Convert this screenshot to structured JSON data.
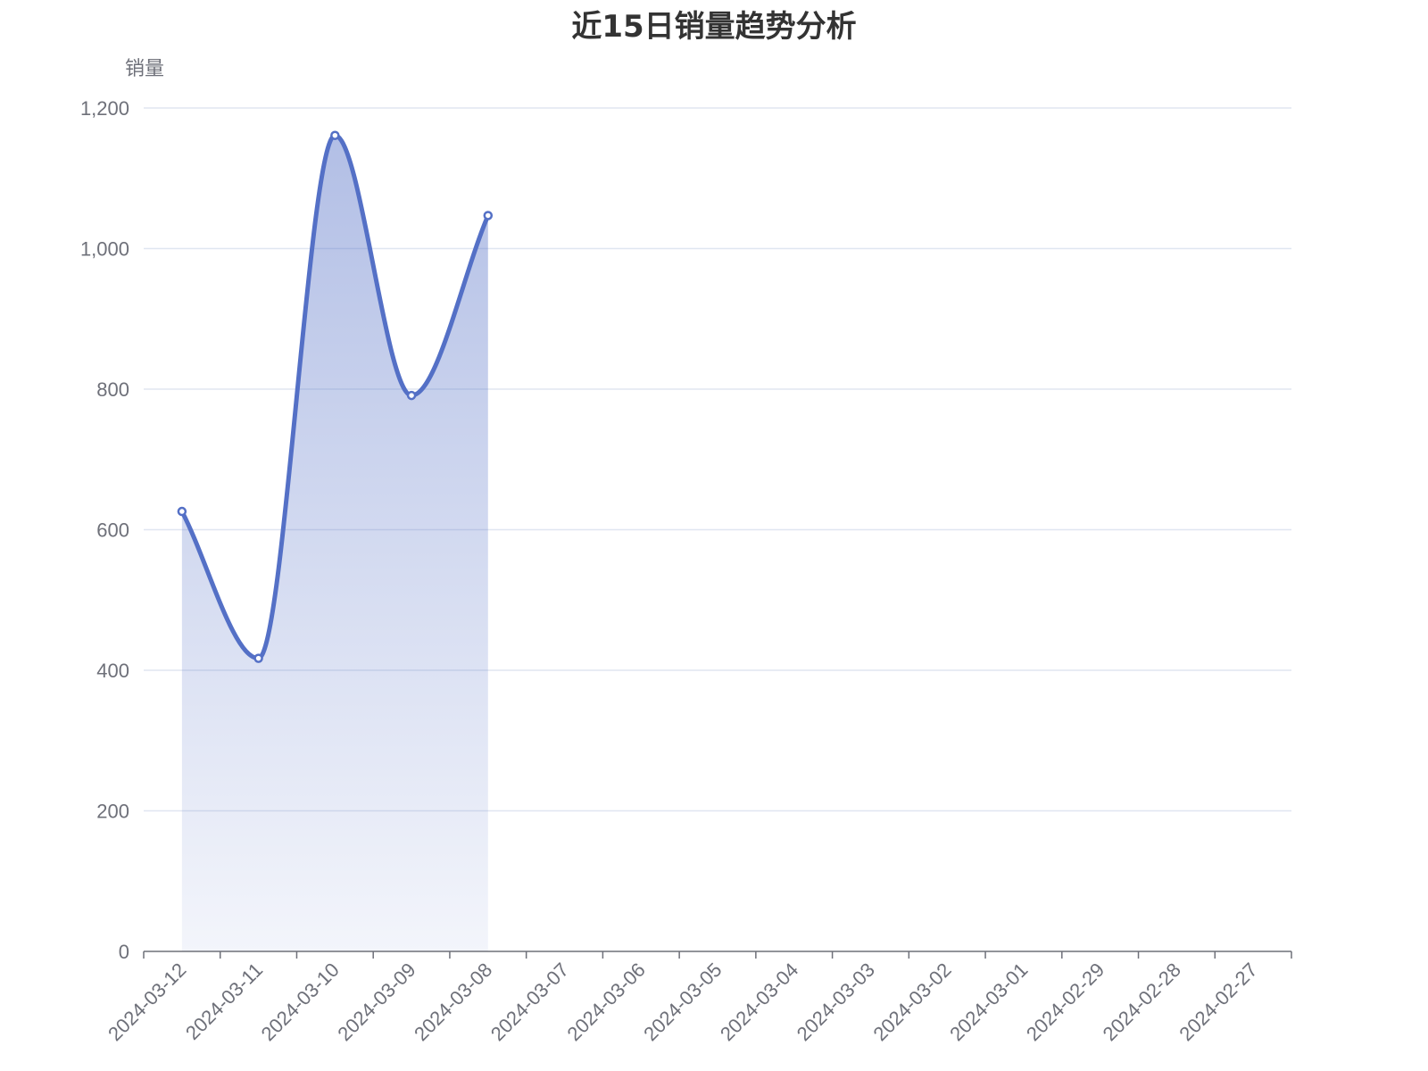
{
  "chart_data": {
    "type": "area",
    "title": "近15日销量趋势分析",
    "xlabel": "",
    "ylabel": "销量",
    "categories": [
      "2024-03-12",
      "2024-03-11",
      "2024-03-10",
      "2024-03-09",
      "2024-03-08",
      "2024-03-07",
      "2024-03-06",
      "2024-03-05",
      "2024-03-04",
      "2024-03-03",
      "2024-03-02",
      "2024-03-01",
      "2024-02-29",
      "2024-02-28",
      "2024-02-27"
    ],
    "y_ticks": [
      "0",
      "200",
      "400",
      "600",
      "800",
      "1,000",
      "1,200"
    ],
    "ylim": [
      0,
      1200
    ],
    "grid": true,
    "smooth": true,
    "series": [
      {
        "values": [
          626,
          417,
          1161,
          791,
          1047,
          null,
          null,
          null,
          null,
          null,
          null,
          null,
          null,
          null,
          null
        ]
      }
    ],
    "colors": {
      "line": "#5470c6",
      "area_top": "#5470c6",
      "grid": "#e0e6f1",
      "axis": "#6e7079"
    }
  }
}
